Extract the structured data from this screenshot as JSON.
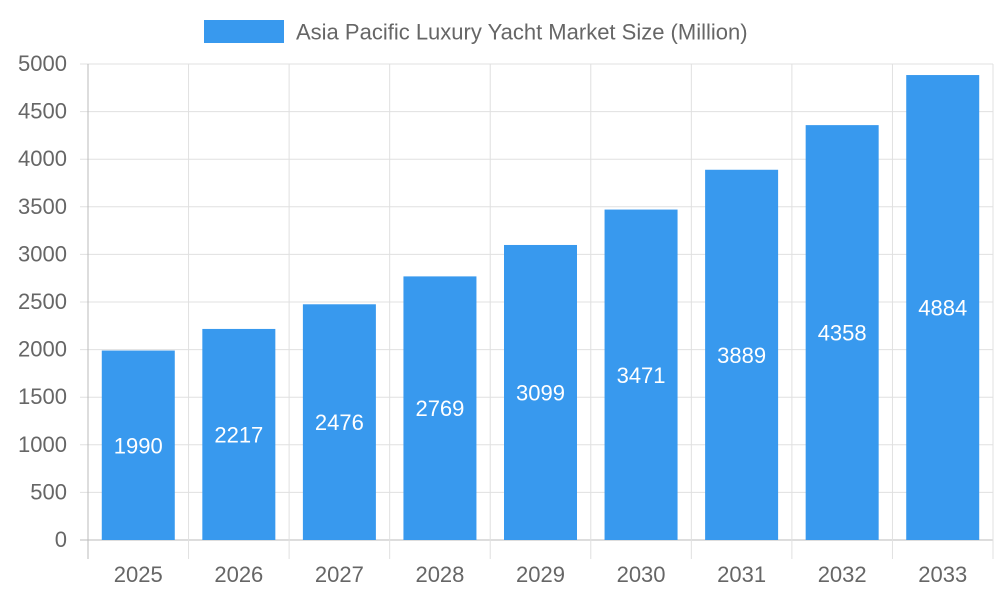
{
  "chart_data": {
    "type": "bar",
    "title": "",
    "xlabel": "",
    "ylabel": "",
    "categories": [
      "2025",
      "2026",
      "2027",
      "2028",
      "2029",
      "2030",
      "2031",
      "2032",
      "2033"
    ],
    "series": [
      {
        "name": "Asia Pacific Luxury Yacht Market Size (Million)",
        "values": [
          1990,
          2217,
          2476,
          2769,
          3099,
          3471,
          3889,
          4358,
          4884
        ],
        "color": "#3899ee"
      }
    ],
    "ylim": [
      0,
      5000
    ],
    "yticks": [
      0,
      500,
      1000,
      1500,
      2000,
      2500,
      3000,
      3500,
      4000,
      4500,
      5000
    ],
    "grid": true,
    "legend": "top",
    "data_labels": true
  }
}
